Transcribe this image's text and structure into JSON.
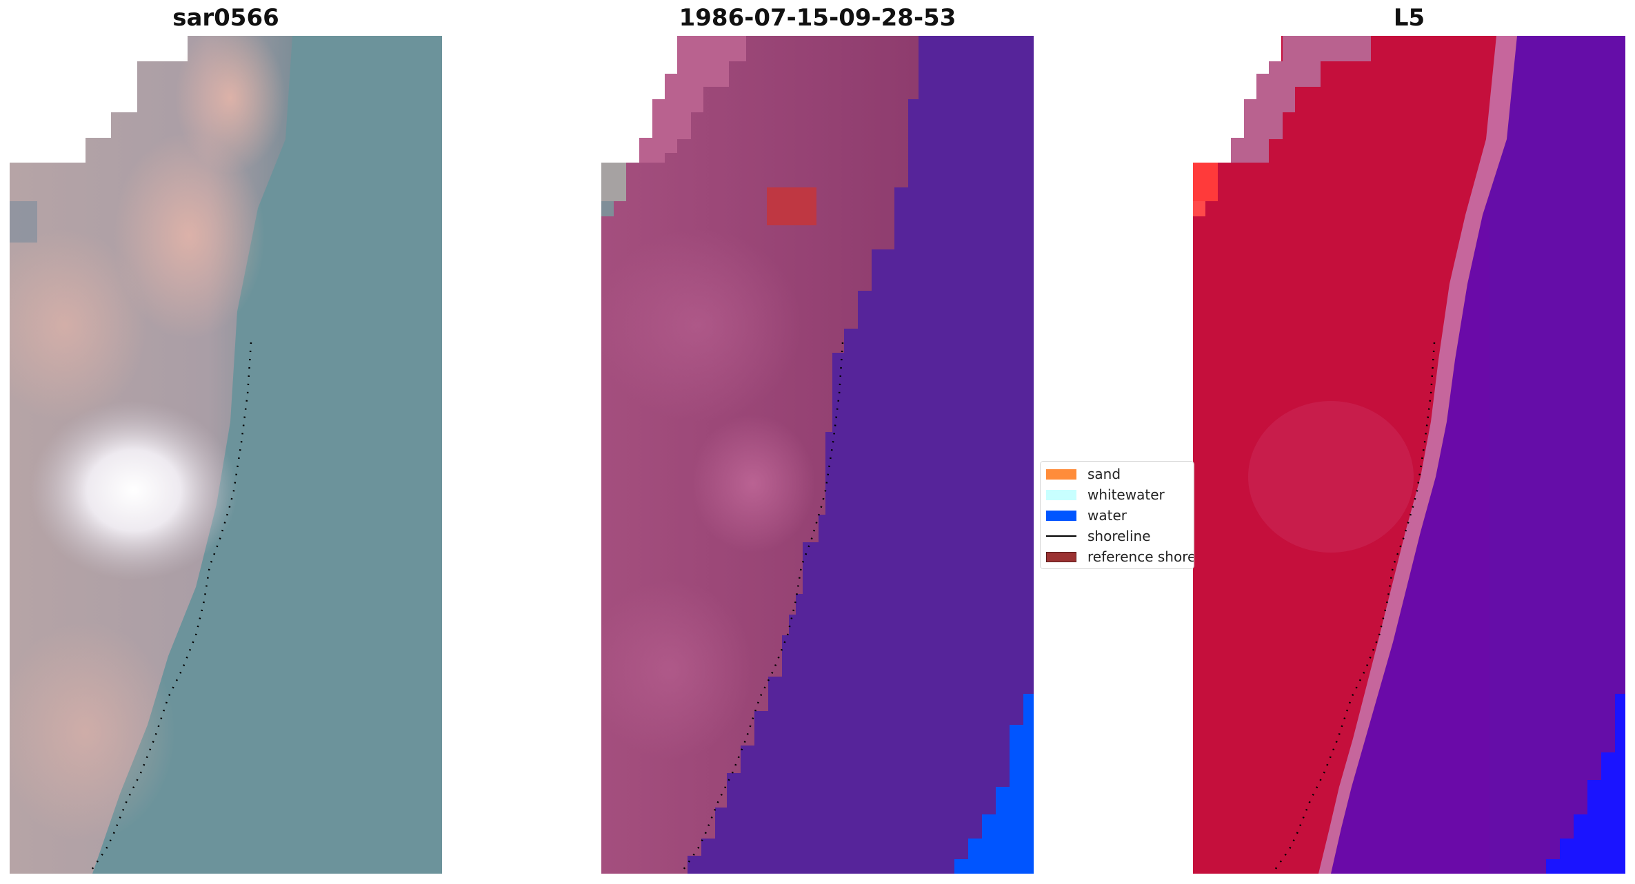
{
  "panels": [
    {
      "title": "sar0566",
      "style": "rgb"
    },
    {
      "title": "1986-07-15-09-28-53",
      "style": "classified"
    },
    {
      "title": "L5",
      "style": "index"
    }
  ],
  "legend": {
    "items": [
      {
        "label": "sand",
        "color": "#ff8c3a",
        "kind": "patch"
      },
      {
        "label": "whitewater",
        "color": "#c8ffff",
        "kind": "patch"
      },
      {
        "label": "water",
        "color": "#0055ff",
        "kind": "patch"
      },
      {
        "label": "shoreline",
        "color": "#000000",
        "kind": "line"
      },
      {
        "label": "reference shoreline",
        "color": "#9b3232",
        "kind": "patch"
      }
    ]
  },
  "colors": {
    "sea_rgb": "#6a9098",
    "land_rgb": "#b7a3a8",
    "land_class": "#a14a78",
    "sea_class": "#56249a",
    "water_class": "#0055ff",
    "land_index": "#c50f3c",
    "sea_index": "#6a0aa8",
    "nodata": "#b9628f",
    "shoreline": "#000000"
  }
}
